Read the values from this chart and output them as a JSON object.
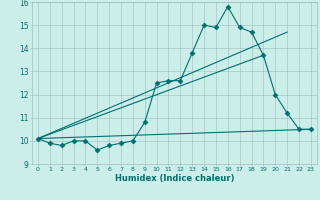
{
  "xlabel": "Humidex (Indice chaleur)",
  "ylabel": "",
  "xlim": [
    -0.5,
    23.5
  ],
  "ylim": [
    9,
    16
  ],
  "xticks": [
    0,
    1,
    2,
    3,
    4,
    5,
    6,
    7,
    8,
    9,
    10,
    11,
    12,
    13,
    14,
    15,
    16,
    17,
    18,
    19,
    20,
    21,
    22,
    23
  ],
  "yticks": [
    9,
    10,
    11,
    12,
    13,
    14,
    15,
    16
  ],
  "background_color": "#cceee8",
  "grid_color": "#9fbfbf",
  "line_color": "#007070",
  "zigzag_x": [
    0,
    1,
    2,
    3,
    4,
    5,
    6,
    7,
    8,
    9,
    10,
    11,
    12,
    13,
    14,
    15,
    16,
    17,
    18,
    19,
    20,
    21,
    22,
    23
  ],
  "zigzag_y": [
    10.1,
    9.9,
    9.8,
    10.0,
    10.0,
    9.6,
    9.8,
    9.9,
    10.0,
    10.8,
    12.5,
    12.6,
    12.6,
    13.8,
    15.0,
    14.9,
    15.8,
    14.9,
    14.7,
    13.7,
    12.0,
    11.2,
    10.5,
    10.5
  ],
  "line1_x": [
    0,
    23
  ],
  "line1_y": [
    10.1,
    10.5
  ],
  "line2_x": [
    0,
    19
  ],
  "line2_y": [
    10.1,
    13.7
  ],
  "line3_x": [
    0,
    21
  ],
  "line3_y": [
    10.1,
    14.7
  ]
}
